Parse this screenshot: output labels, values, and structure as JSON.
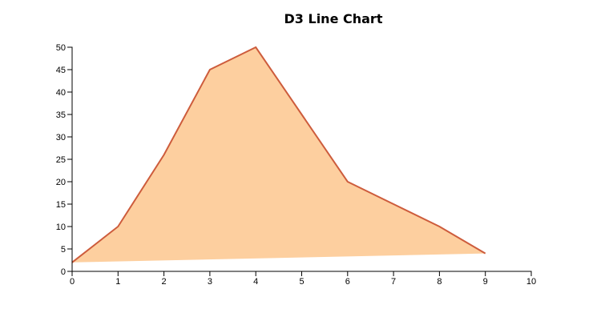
{
  "chart_data": {
    "type": "area",
    "title": "D3 Line Chart",
    "xlabel": "",
    "ylabel": "",
    "xlim": [
      0,
      10
    ],
    "ylim": [
      0,
      50
    ],
    "x_ticks": [
      "0",
      "1",
      "2",
      "3",
      "4",
      "5",
      "6",
      "7",
      "8",
      "9",
      "10"
    ],
    "y_ticks": [
      "0",
      "5",
      "10",
      "15",
      "20",
      "25",
      "30",
      "35",
      "40",
      "45",
      "50"
    ],
    "points": [
      {
        "x": 0,
        "y": 2
      },
      {
        "x": 1,
        "y": 10
      },
      {
        "x": 2,
        "y": 26
      },
      {
        "x": 3,
        "y": 45
      },
      {
        "x": 4,
        "y": 50
      },
      {
        "x": 5,
        "y": 35
      },
      {
        "x": 6,
        "y": 20
      },
      {
        "x": 7,
        "y": 15
      },
      {
        "x": 8,
        "y": 10
      },
      {
        "x": 9,
        "y": 4
      }
    ],
    "grid": false,
    "colors": {
      "line": "#cd5c3c",
      "fill": "#fdcf9f"
    }
  }
}
